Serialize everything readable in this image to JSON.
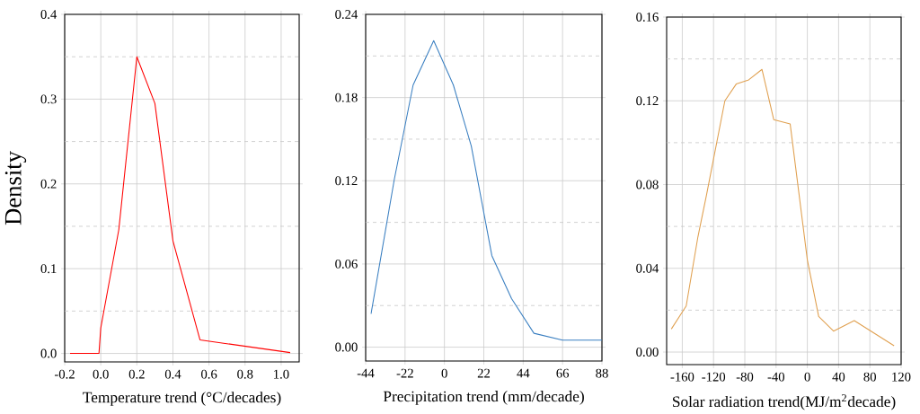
{
  "chart_data": [
    {
      "type": "line",
      "xlabel": "Temperature trend (°C/decades)",
      "ylabel": "Density",
      "grid": true,
      "marker": "none",
      "line_style": "solid",
      "xlim": [
        -0.2,
        1.1
      ],
      "ylim": [
        -0.01,
        0.4
      ],
      "xticks": [
        {
          "value": -0.2,
          "label": "-0.2"
        },
        {
          "value": 0,
          "label": "0.0"
        },
        0.2,
        0.4,
        0.6,
        0.8,
        {
          "value": 1,
          "label": "1.0"
        }
      ],
      "yticks": [
        {
          "value": 0,
          "label": "0.0"
        },
        {
          "value": 0.05,
          "label": null
        },
        0.1,
        {
          "value": 0.15,
          "label": null
        },
        0.2,
        {
          "value": 0.25,
          "label": null
        },
        0.3,
        {
          "value": 0.35,
          "label": null
        },
        0.4
      ],
      "series": [
        {
          "color": "#ff0000",
          "x": [
            -0.17,
            -0.01,
            0.0,
            0.1,
            0.2,
            0.3,
            0.4,
            0.55,
            1.05
          ],
          "values": [
            0,
            0,
            0.03,
            0.146,
            0.35,
            0.295,
            0.133,
            0.016,
            0.001
          ]
        }
      ]
    },
    {
      "type": "line",
      "xlabel": "Precipitation trend (mm/decade)",
      "grid": true,
      "marker": "none",
      "line_style": "solid",
      "xlim": [
        -44,
        88
      ],
      "ylim": [
        -0.01,
        0.24
      ],
      "xticks": [
        -44,
        -22,
        0,
        22,
        44,
        66,
        88
      ],
      "yticks": [
        {
          "value": 0,
          "label": "0.00"
        },
        {
          "value": 0.03,
          "label": null
        },
        {
          "value": 0.06,
          "label": "0.06"
        },
        {
          "value": 0.09,
          "label": null
        },
        {
          "value": 0.12,
          "label": "0.12"
        },
        {
          "value": 0.15,
          "label": null
        },
        {
          "value": 0.18,
          "label": "0.18"
        },
        {
          "value": 0.21,
          "label": null
        },
        {
          "value": 0.24,
          "label": "0.24"
        }
      ],
      "series": [
        {
          "color": "#3a7fc1",
          "x": [
            -41,
            -28,
            -17.5,
            -6,
            5,
            15,
            26.5,
            37.5,
            50,
            66,
            88
          ],
          "values": [
            0.024,
            0.121,
            0.189,
            0.221,
            0.189,
            0.145,
            0.066,
            0.035,
            0.01,
            0.005,
            0.005
          ]
        }
      ]
    },
    {
      "type": "line",
      "xlabel": "Solar radiation trend(MJ/m$^{2}$decade)",
      "grid": true,
      "marker": "none",
      "line_style": "solid",
      "xlim": [
        -180,
        120
      ],
      "ylim": [
        -0.006,
        0.16
      ],
      "xticks": [
        -160,
        -120,
        -80,
        -40,
        0,
        40,
        80,
        120
      ],
      "yticks": [
        {
          "value": 0,
          "label": "0.00"
        },
        {
          "value": 0.02,
          "label": null
        },
        {
          "value": 0.04,
          "label": "0.04"
        },
        {
          "value": 0.06,
          "label": null
        },
        {
          "value": 0.08,
          "label": "0.08"
        },
        {
          "value": 0.1,
          "label": null
        },
        {
          "value": 0.12,
          "label": "0.12"
        },
        {
          "value": 0.14,
          "label": null
        },
        {
          "value": 0.16,
          "label": "0.16"
        }
      ],
      "series": [
        {
          "color": "#e0a050",
          "x": [
            -174,
            -155,
            -140,
            -129,
            -105.5,
            -91,
            -75,
            -58,
            -43,
            -22,
            0,
            14.5,
            33.5,
            60,
            111
          ],
          "values": [
            0.011,
            0.022,
            0.055,
            0.075,
            0.12,
            0.128,
            0.13,
            0.135,
            0.111,
            0.109,
            0.044,
            0.017,
            0.01,
            0.015,
            0.003
          ]
        }
      ]
    }
  ]
}
